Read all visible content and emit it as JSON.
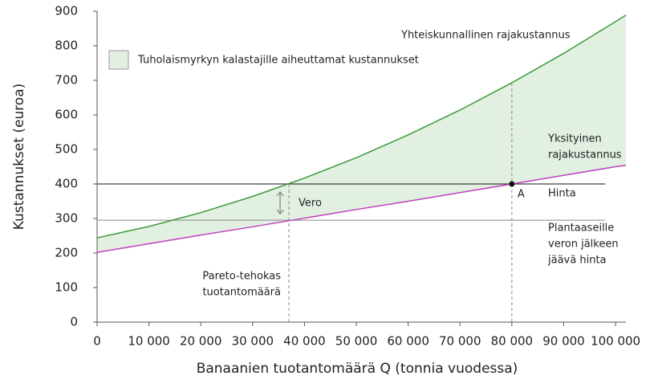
{
  "chart_data": {
    "type": "line",
    "x_label": "Banaanien tuotantomäärä Q (tonnia vuodessa)",
    "y_label": "Kustannukset (euroa)",
    "x": [
      0,
      10000,
      20000,
      30000,
      40000,
      50000,
      60000,
      70000,
      80000,
      90000,
      100000,
      102000
    ],
    "series": [
      {
        "name": "Yhteiskunnallinen rajakustannus",
        "color": "#3a9a3a",
        "values": [
          244,
          277,
          317,
          364,
          417,
          476,
          542,
          614,
          693,
          778,
          870,
          889
        ]
      },
      {
        "name": "Yksityinen rajakustannus",
        "color": "#c040c0",
        "values": [
          202,
          227,
          252,
          276,
          301,
          326,
          350,
          375,
          400,
          425,
          450,
          454
        ]
      }
    ],
    "area": {
      "name": "Tuholaismyrkyn kalastajille aiheuttamat kustannukset",
      "color": "#e2f0e2"
    },
    "xlim": [
      0,
      102000
    ],
    "ylim": [
      0,
      900
    ],
    "xticks": [
      0,
      {
        "value": 10000,
        "label": "10 000"
      },
      {
        "value": 20000,
        "label": "20 000"
      },
      {
        "value": 30000,
        "label": "30 000"
      },
      {
        "value": 40000,
        "label": "40 000"
      },
      {
        "value": 50000,
        "label": "50 000"
      },
      {
        "value": 60000,
        "label": "60 000"
      },
      {
        "value": 70000,
        "label": "70 000"
      },
      {
        "value": 80000,
        "label": "80 000"
      },
      {
        "value": 90000,
        "label": "90 000"
      },
      {
        "value": 100000,
        "label": "100 000"
      }
    ],
    "yticks": [
      0,
      100,
      200,
      300,
      400,
      500,
      600,
      700,
      800,
      900
    ],
    "price": 400,
    "net_price": 295,
    "lines_end": 98000,
    "pareto_q": 37000,
    "point_q": 80000,
    "annotations": {
      "social": "Yhteiskunnallinen rajakustannus",
      "private": [
        "Yksityinen",
        "rajakustannus"
      ],
      "price": "Hinta",
      "net_price": [
        "Plantaaseille",
        "veron jälkeen",
        "jäävä hinta"
      ],
      "tax": "Vero",
      "pareto": [
        "Pareto-tehokas",
        "tuotantomäärä"
      ],
      "point": "A"
    }
  }
}
